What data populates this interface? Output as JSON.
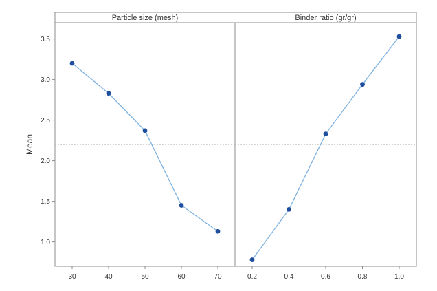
{
  "chart_data": {
    "type": "line",
    "ylabel": "Mean",
    "ylim": [
      0.7,
      3.7
    ],
    "yticks": [
      1.0,
      1.5,
      2.0,
      2.5,
      3.0,
      3.5
    ],
    "ytick_labels": [
      "1.0",
      "1.5",
      "2.0",
      "2.5",
      "3.0",
      "3.5"
    ],
    "reference_line": 2.2,
    "grid": false,
    "colors": {
      "line": "#7fb2df",
      "marker": "#1f4e9c",
      "reference": "#aaaaaa",
      "frame": "#8c8c8c"
    },
    "panels": [
      {
        "title": "Particle size (mesh)",
        "categories": [
          "30",
          "40",
          "50",
          "60",
          "70"
        ],
        "values": [
          3.2,
          2.83,
          2.37,
          1.45,
          1.13
        ]
      },
      {
        "title": "Binder ratio (gr/gr)",
        "categories": [
          "0.2",
          "0.4",
          "0.6",
          "0.8",
          "1.0"
        ],
        "values": [
          0.78,
          1.4,
          2.33,
          2.94,
          3.53
        ]
      }
    ]
  }
}
